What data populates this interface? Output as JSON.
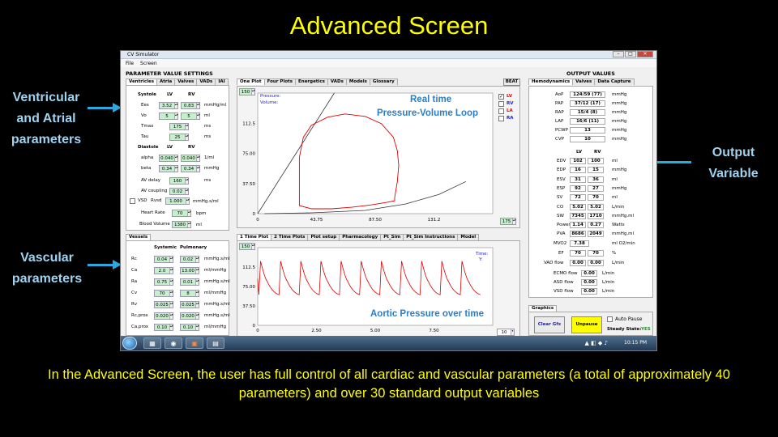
{
  "slide": {
    "title": "Advanced Screen",
    "callouts": {
      "ventricular": "Ventricular and Atrial parameters",
      "vascular": "Vascular parameters",
      "output": "Output Variable"
    },
    "caption": "In the Advanced Screen, the user has full control of all cardiac and vascular parameters (a total of approximately 40 parameters) and over 30 standard output variables"
  },
  "window": {
    "title": "CV Simulator",
    "menu": [
      "File",
      "Screen"
    ],
    "controls": [
      "–",
      "□",
      "✕"
    ]
  },
  "params": {
    "header": "PARAMETER VALUE SETTINGS",
    "tabs": [
      "Ventricles",
      "Atria",
      "Valves",
      "VADs",
      "IAI"
    ],
    "systole_label": "Systole",
    "diastole_label": "Diastole",
    "col_lv": "LV",
    "col_rv": "RV",
    "systole_rows": [
      {
        "label": "Ees",
        "lv": "3.52",
        "rv": "0.83",
        "unit": "mmHg/ml"
      },
      {
        "label": "Vo",
        "lv": "5",
        "rv": "5",
        "unit": "ml"
      },
      {
        "label": "Tmax",
        "v": "175",
        "unit": "ms"
      },
      {
        "label": "Tau",
        "v": "25",
        "unit": "ms"
      }
    ],
    "diastole_rows": [
      {
        "label": "alpha",
        "lv": "0.040",
        "rv": "0.040",
        "unit": "1/ml"
      },
      {
        "label": "beta",
        "lv": "0.34",
        "rv": "0.34",
        "unit": "mmHg"
      }
    ],
    "single_rows": [
      {
        "label": "AV delay",
        "v": "160",
        "unit": "ms"
      },
      {
        "label": "AV coupling",
        "v": "0.02",
        "unit": ""
      }
    ],
    "vsd_label": "VSD",
    "rvsd_label": "Rvsd",
    "rvsd_value": "1.000",
    "rvsd_unit": "mmHg.s/ml",
    "heart_rate": {
      "label": "Heart Rate",
      "v": "70",
      "unit": "bpm"
    },
    "blood_volume": {
      "label": "Blood Volume",
      "v": "1380",
      "unit": "ml"
    }
  },
  "vessels": {
    "tab": "Vessels",
    "col_sys": "Systemic",
    "col_pul": "Pulmonary",
    "rows": [
      {
        "label": "Rc",
        "sys": "0.04",
        "pul": "0.02",
        "unit": "mmHg.s/ml"
      },
      {
        "label": "Ca",
        "sys": "2.0",
        "pul": "13.00",
        "unit": "ml/mmHg"
      },
      {
        "label": "Ra",
        "sys": "0.75",
        "pul": "0.01",
        "unit": "mmHg.s/ml"
      },
      {
        "label": "Cv",
        "sys": "70",
        "pul": "8",
        "unit": "ml/mmHg"
      },
      {
        "label": "Rv",
        "sys": "0.025",
        "pul": "0.025",
        "unit": "mmHg.s/ml"
      },
      {
        "label": "Rc,prox",
        "sys": "0.020",
        "pul": "0.020",
        "unit": "mmHg.s/ml"
      },
      {
        "label": "Ca,prox",
        "sys": "0.10",
        "pul": "0.10",
        "unit": "ml/mmHg"
      }
    ]
  },
  "pv": {
    "tabs": [
      "One Plot",
      "Four Plots",
      "Energetics",
      "VADs",
      "Models",
      "Glossary"
    ],
    "beat_button": "BEAT",
    "ymax_value": "150",
    "xmax_value": "175",
    "y_label_pressure": "Pressure:",
    "y_label_volume": "Volume:",
    "annotation_line1": "Real time",
    "annotation_line2": "Pressure-Volume Loop",
    "legend": [
      {
        "label": "LV",
        "color": "#e00000",
        "checked": true
      },
      {
        "label": "RV",
        "color": "#2222cc",
        "checked": false
      },
      {
        "label": "LA",
        "color": "#e00000",
        "checked": false
      },
      {
        "label": "RA",
        "color": "#2222cc",
        "checked": false
      }
    ]
  },
  "time": {
    "tabs": [
      "1 Time Plot",
      "2 Time Plots",
      "Plot setup",
      "Pharmacology",
      "Pt_Sim",
      "Pt_Sim Instructions",
      "Model"
    ],
    "ymax_value": "150",
    "xmax_value": "10",
    "time_label": "Time:",
    "y_readout": "Y:",
    "annotation": "Aortic Pressure over time"
  },
  "outputs": {
    "header": "OUTPUT VALUES",
    "tabs": [
      "Hemodynamics",
      "Valves",
      "Data Capture"
    ],
    "single_rows": [
      {
        "label": "AoP",
        "v": "124/59 (77)",
        "unit": "mmHg"
      },
      {
        "label": "PAP",
        "v": "37/12 (17)",
        "unit": "mmHg"
      },
      {
        "label": "RAP",
        "v": "15/4 (8)",
        "unit": "mmHg"
      },
      {
        "label": "LAP",
        "v": "16/6 (11)",
        "unit": "mmHg"
      },
      {
        "label": "PCWP",
        "v": "13",
        "unit": "mmHg"
      },
      {
        "label": "CVP",
        "v": "10",
        "unit": "mmHg"
      }
    ],
    "col_lv": "LV",
    "col_rv": "RV",
    "pair_rows": [
      {
        "label": "EDV",
        "lv": "102",
        "rv": "100",
        "unit": "ml"
      },
      {
        "label": "EDP",
        "lv": "16",
        "rv": "15",
        "unit": "mmHg"
      },
      {
        "label": "ESV",
        "lv": "31",
        "rv": "36",
        "unit": "ml"
      },
      {
        "label": "ESP",
        "lv": "92",
        "rv": "27",
        "unit": "mmHg"
      },
      {
        "label": "SV",
        "lv": "72",
        "rv": "70",
        "unit": "ml"
      },
      {
        "label": "CO",
        "lv": "5.02",
        "rv": "5.02",
        "unit": "L/min"
      },
      {
        "label": "SW",
        "lv": "7345",
        "rv": "1710",
        "unit": "mmHg.ml"
      },
      {
        "label": "Power",
        "lv": "1.14",
        "rv": "0.27",
        "unit": "Watts"
      },
      {
        "label": "PVA",
        "lv": "8686",
        "rv": "2049",
        "unit": "mmHg.ml"
      }
    ],
    "mvo2": {
      "label": "MVO2",
      "v": "7.38",
      "unit": "ml O2/min"
    },
    "ef": {
      "label": "EF",
      "lv": "70",
      "rv": "70",
      "unit": "%"
    },
    "vad_flow": {
      "label": "VAD flow",
      "lv": "0.00",
      "rv": "0.00",
      "unit": "L/min"
    },
    "ecmo_flow": {
      "label": "ECMO flow",
      "v": "0.00",
      "unit": "L/min"
    },
    "asd_flow": {
      "label": "ASD flow",
      "v": "0.00",
      "unit": "L/min"
    },
    "vsd_flow": {
      "label": "VSD flow",
      "v": "0.00",
      "unit": "L/min"
    }
  },
  "graphics": {
    "tab": "Graphics",
    "clear_button": "Clear Gfx",
    "unpause_button": "Unpause",
    "auto_pause_label": "Auto Pause",
    "steady_label": "Steady State:",
    "steady_value": "YES"
  },
  "taskbar": {
    "clock": "10:15 PM"
  },
  "chart_data": [
    {
      "type": "line",
      "title": "Real time Pressure-Volume Loop",
      "xlabel": "",
      "ylabel": "",
      "xlim": [
        0,
        175
      ],
      "ylim": [
        0,
        150
      ],
      "x_ticks": [
        "0",
        "43.75",
        "87.50",
        "131.2",
        "175"
      ],
      "y_ticks": [
        "150",
        "112.5",
        "75.00",
        "37.50",
        "0"
      ],
      "grid": false,
      "series": [
        {
          "name": "LV",
          "color": "#e00000",
          "x": [
            31,
            31,
            34,
            40,
            52,
            65,
            80,
            92,
            101,
            104,
            105,
            104,
            102,
            102,
            96,
            85,
            70,
            55,
            40,
            31
          ],
          "y": [
            10,
            70,
            95,
            110,
            120,
            124,
            121,
            112,
            95,
            78,
            60,
            40,
            20,
            16,
            14,
            11,
            8,
            6,
            6,
            10
          ]
        }
      ],
      "lines": [
        {
          "x": [
            0,
            57
          ],
          "y": [
            0,
            150
          ],
          "color": "#333333"
        },
        {
          "x": [
            5,
            40,
            80,
            110,
            135,
            155
          ],
          "y": [
            0,
            1,
            4,
            12,
            24,
            40
          ],
          "color": "#333333"
        }
      ]
    },
    {
      "type": "line",
      "title": "Aortic Pressure over time",
      "xlabel": "",
      "ylabel": "",
      "xlim": [
        0,
        10
      ],
      "ylim": [
        0,
        150
      ],
      "x_ticks": [
        "0",
        "2.50",
        "5.00",
        "7.50",
        "10"
      ],
      "y_ticks": [
        "150",
        "112.5",
        "75.00",
        "37.50",
        "0"
      ],
      "grid": false,
      "beats": {
        "count": 11,
        "period_s": 0.857,
        "systolic": 124,
        "diastolic": 59,
        "first_diastolic": 90
      }
    }
  ]
}
